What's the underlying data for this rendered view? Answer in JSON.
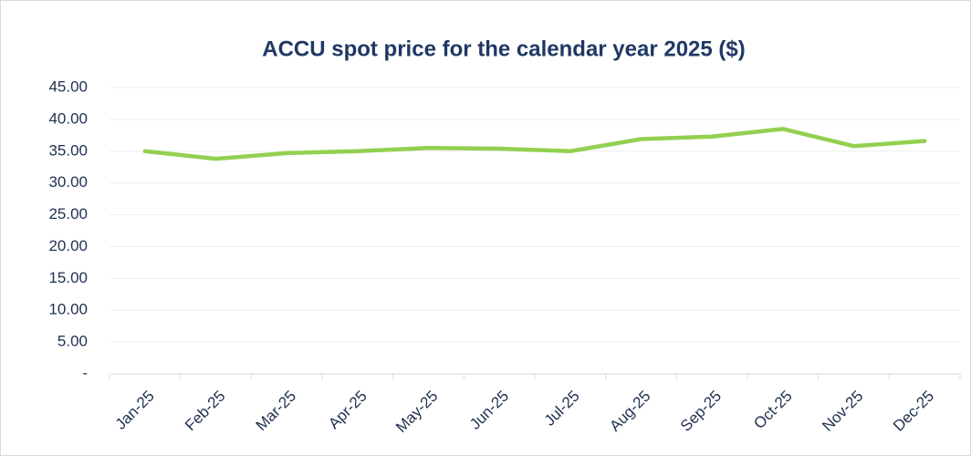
{
  "chart_data": {
    "type": "line",
    "title": "ACCU spot price for the calendar year 2025 ($)",
    "categories": [
      "Jan-25",
      "Feb-25",
      "Mar-25",
      "Apr-25",
      "May-25",
      "Jun-25",
      "Jul-25",
      "Aug-25",
      "Sep-25",
      "Oct-25",
      "Nov-25",
      "Dec-25"
    ],
    "series": [
      {
        "name": "ACCU spot price",
        "color": "#92d050",
        "values": [
          35.0,
          33.8,
          34.7,
          35.0,
          35.5,
          35.4,
          35.0,
          36.9,
          37.3,
          38.5,
          35.8,
          36.6
        ]
      }
    ],
    "ylim": [
      0,
      45
    ],
    "yticks": [
      {
        "value": 0,
        "label": "-"
      },
      {
        "value": 5,
        "label": "5.00"
      },
      {
        "value": 10,
        "label": "10.00"
      },
      {
        "value": 15,
        "label": "15.00"
      },
      {
        "value": 20,
        "label": "20.00"
      },
      {
        "value": 25,
        "label": "25.00"
      },
      {
        "value": 30,
        "label": "30.00"
      },
      {
        "value": 35,
        "label": "35.00"
      },
      {
        "value": 40,
        "label": "40.00"
      },
      {
        "value": 45,
        "label": "45.00"
      }
    ],
    "grid": true
  }
}
